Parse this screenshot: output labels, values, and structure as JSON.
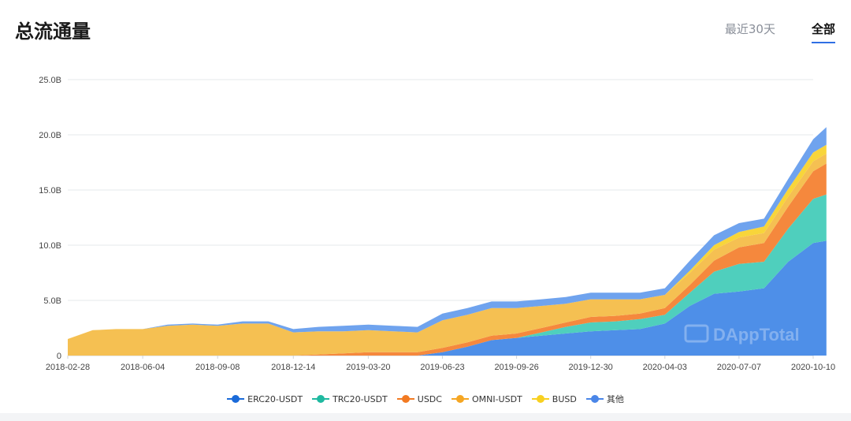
{
  "header": {
    "title": "总流通量",
    "tabs": [
      {
        "label": "最近30天",
        "active": false
      },
      {
        "label": "全部",
        "active": true
      }
    ]
  },
  "watermark": "DAppTotal",
  "chart_data": {
    "type": "area",
    "stacked": true,
    "title": "总流通量",
    "ylim": [
      0,
      25
    ],
    "yticks": [
      "0",
      "5.0B",
      "10.0B",
      "15.0B",
      "20.0B",
      "25.0B"
    ],
    "ytick_values": [
      0,
      5,
      10,
      15,
      20,
      25
    ],
    "unit": "B",
    "grid": true,
    "legend_position": "bottom-center",
    "x_tick_labels": [
      "2018-02-28",
      "2018-06-04",
      "2018-09-08",
      "2018-12-14",
      "2019-03-20",
      "2019-06-23",
      "2019-09-26",
      "2019-12-30",
      "2020-04-03",
      "2020-07-07",
      "2020-10-10"
    ],
    "x": [
      "2018-02-28",
      "2018-04-01",
      "2018-05-01",
      "2018-06-04",
      "2018-07-06",
      "2018-08-07",
      "2018-09-08",
      "2018-10-10",
      "2018-11-12",
      "2018-12-14",
      "2019-01-15",
      "2019-02-16",
      "2019-03-20",
      "2019-04-21",
      "2019-05-22",
      "2019-06-23",
      "2019-07-25",
      "2019-08-25",
      "2019-09-26",
      "2019-10-28",
      "2019-11-28",
      "2019-12-30",
      "2020-01-31",
      "2020-03-02",
      "2020-04-03",
      "2020-05-05",
      "2020-06-05",
      "2020-07-07",
      "2020-08-08",
      "2020-09-08",
      "2020-10-10",
      "2020-10-27"
    ],
    "series": [
      {
        "name": "ERC20-USDT",
        "color": "#4e8fe8",
        "values": [
          0,
          0,
          0,
          0,
          0,
          0,
          0,
          0,
          0,
          0,
          0,
          0,
          0,
          0,
          0,
          0.3,
          0.8,
          1.4,
          1.6,
          1.8,
          2.0,
          2.2,
          2.3,
          2.4,
          2.9,
          4.5,
          5.6,
          5.8,
          6.1,
          8.5,
          10.2,
          10.4
        ]
      },
      {
        "name": "TRC20-USDT",
        "color": "#4fcfbd",
        "values": [
          0,
          0,
          0,
          0,
          0,
          0,
          0,
          0,
          0,
          0,
          0,
          0,
          0,
          0,
          0,
          0,
          0,
          0,
          0,
          0.3,
          0.6,
          0.8,
          0.8,
          0.9,
          0.8,
          1.2,
          2.0,
          2.5,
          2.4,
          3.0,
          4.0,
          4.2
        ]
      },
      {
        "name": "USDC",
        "color": "#f5883d",
        "values": [
          0,
          0,
          0,
          0,
          0,
          0,
          0,
          0,
          0,
          0,
          0.1,
          0.2,
          0.3,
          0.3,
          0.3,
          0.4,
          0.4,
          0.4,
          0.4,
          0.4,
          0.4,
          0.5,
          0.5,
          0.5,
          0.6,
          0.7,
          1.0,
          1.5,
          1.7,
          2.0,
          2.5,
          2.8
        ]
      },
      {
        "name": "OMNI-USDT",
        "color": "#f5c052",
        "values": [
          1.5,
          2.3,
          2.4,
          2.4,
          2.7,
          2.8,
          2.7,
          2.9,
          2.9,
          2.1,
          2.1,
          2.0,
          2.0,
          1.9,
          1.8,
          2.5,
          2.5,
          2.5,
          2.3,
          2.0,
          1.7,
          1.6,
          1.5,
          1.3,
          1.2,
          1.1,
          1.0,
          0.9,
          0.9,
          0.9,
          0.9,
          0.9
        ]
      },
      {
        "name": "BUSD",
        "color": "#f8d53a",
        "values": [
          0,
          0,
          0,
          0,
          0,
          0,
          0,
          0,
          0,
          0,
          0,
          0,
          0,
          0,
          0,
          0,
          0,
          0,
          0,
          0,
          0,
          0,
          0,
          0,
          0,
          0.2,
          0.4,
          0.5,
          0.6,
          0.7,
          0.8,
          0.8
        ]
      },
      {
        "name": "其他",
        "color": "#6fa3ee",
        "values": [
          0,
          0,
          0,
          0,
          0.1,
          0.1,
          0.1,
          0.2,
          0.2,
          0.3,
          0.4,
          0.5,
          0.5,
          0.5,
          0.5,
          0.6,
          0.6,
          0.6,
          0.6,
          0.6,
          0.6,
          0.6,
          0.6,
          0.6,
          0.6,
          0.9,
          0.9,
          0.8,
          0.7,
          0.9,
          1.2,
          1.6
        ]
      }
    ],
    "legend": [
      {
        "name": "ERC20-USDT",
        "color": "#1a6ad9"
      },
      {
        "name": "TRC20-USDT",
        "color": "#1fb9a0"
      },
      {
        "name": "USDC",
        "color": "#f27a22"
      },
      {
        "name": "OMNI-USDT",
        "color": "#f5a623"
      },
      {
        "name": "BUSD",
        "color": "#f8d020"
      },
      {
        "name": "其他",
        "color": "#4a86e8"
      }
    ]
  }
}
